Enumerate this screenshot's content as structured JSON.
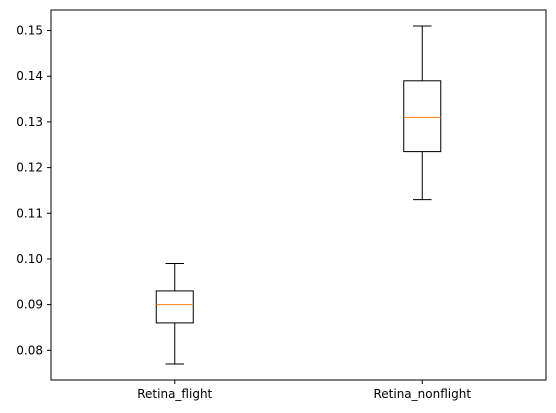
{
  "chart_data": {
    "type": "boxplot",
    "title": "",
    "xlabel": "",
    "ylabel": "",
    "categories": [
      "Retina_flight",
      "Retina_nonflight"
    ],
    "boxes": [
      {
        "category": "Retina_flight",
        "whisker_low": 0.077,
        "q1": 0.086,
        "median": 0.09,
        "q3": 0.093,
        "whisker_high": 0.099
      },
      {
        "category": "Retina_nonflight",
        "whisker_low": 0.113,
        "q1": 0.1235,
        "median": 0.131,
        "q3": 0.139,
        "whisker_high": 0.151
      }
    ],
    "ylim": [
      0.0735,
      0.1545
    ],
    "yticks": [
      0.08,
      0.09,
      0.1,
      0.11,
      0.12,
      0.13,
      0.14,
      0.15
    ],
    "ytick_labels": [
      "0.08",
      "0.09",
      "0.10",
      "0.11",
      "0.12",
      "0.13",
      "0.14",
      "0.15"
    ],
    "grid": false,
    "colors": {
      "box": "#000000",
      "median": "#ff7f0e",
      "axes": "#000000",
      "background": "#ffffff"
    }
  }
}
